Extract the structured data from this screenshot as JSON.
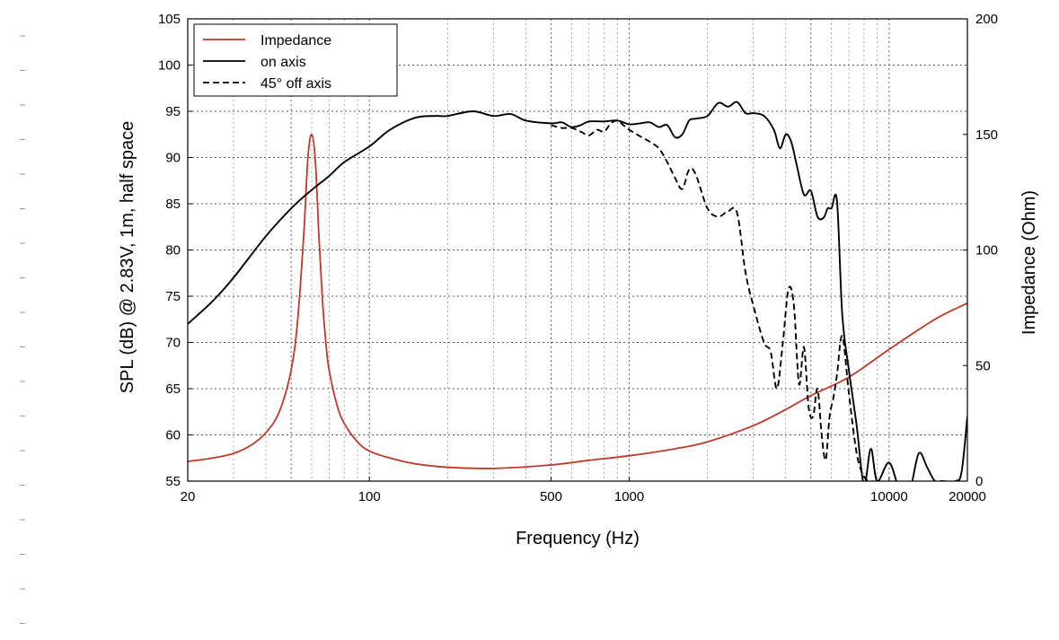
{
  "chart_data": {
    "type": "line",
    "xscale": "log",
    "xlabel": "Frequency (Hz)",
    "ylabel_left": "SPL (dB) @ 2.83V, 1m, half space",
    "ylabel_right": "Impedance (Ohm)",
    "xlim": [
      20,
      20000
    ],
    "ylim_left": [
      55,
      105
    ],
    "ylim_right": [
      0,
      200
    ],
    "x_ticks": [
      20,
      100,
      500,
      1000,
      10000,
      20000
    ],
    "x_tick_labels": [
      "20",
      "100",
      "500",
      "1000",
      "10000",
      "20000"
    ],
    "y_left_ticks": [
      55,
      60,
      65,
      70,
      75,
      80,
      85,
      90,
      95,
      100,
      105
    ],
    "y_left_tick_labels": [
      "55",
      "60",
      "65",
      "70",
      "75",
      "80",
      "85",
      "90",
      "95",
      "100",
      "105"
    ],
    "y_right_ticks": [
      0,
      50,
      100,
      150,
      200
    ],
    "y_right_tick_labels": [
      "0",
      "50",
      "100",
      "150",
      "200"
    ],
    "grid": true,
    "legend_position": "top-left",
    "legend": [
      {
        "label": "Impedance",
        "color": "#c0392b",
        "style": "solid"
      },
      {
        "label": "on axis",
        "color": "#000000",
        "style": "solid"
      },
      {
        "label": "45° off axis",
        "color": "#000000",
        "style": "dashed"
      }
    ],
    "series": [
      {
        "name": "Impedance",
        "axis": "right",
        "color": "#c0392b",
        "style": "solid",
        "x": [
          20,
          25,
          30,
          35,
          40,
          45,
          50,
          53,
          56,
          58,
          60,
          62,
          64,
          66,
          68,
          70,
          75,
          80,
          90,
          100,
          120,
          150,
          200,
          300,
          500,
          700,
          1000,
          1500,
          2000,
          3000,
          4000,
          5000,
          7000,
          10000,
          15000,
          20000
        ],
        "y": [
          8.5,
          10,
          12,
          15.5,
          21,
          30,
          48,
          70,
          108,
          140,
          150,
          138,
          105,
          78,
          60,
          48,
          33,
          25,
          17,
          13,
          10,
          7.5,
          6,
          5.5,
          7,
          9,
          11,
          14,
          17,
          24,
          31,
          37,
          45,
          57,
          70,
          77
        ]
      },
      {
        "name": "on axis",
        "axis": "left",
        "color": "#000000",
        "style": "solid",
        "x": [
          20,
          25,
          30,
          40,
          50,
          60,
          70,
          80,
          100,
          120,
          150,
          180,
          200,
          250,
          300,
          350,
          400,
          500,
          550,
          600,
          650,
          700,
          800,
          900,
          1000,
          1100,
          1200,
          1300,
          1400,
          1500,
          1600,
          1700,
          1800,
          2000,
          2200,
          2400,
          2600,
          2800,
          3000,
          3300,
          3600,
          3800,
          4000,
          4200,
          4400,
          4700,
          5000,
          5300,
          5600,
          5800,
          6000,
          6300,
          6600,
          7000,
          7500,
          8000,
          8500,
          9000,
          10000,
          11000,
          12000,
          13000,
          14000,
          15000,
          16000,
          18000,
          19000,
          20000
        ],
        "y": [
          72,
          74.5,
          77,
          81.5,
          84.5,
          86.5,
          88,
          89.5,
          91.2,
          93,
          94.3,
          94.5,
          94.5,
          95,
          94.5,
          94.7,
          94,
          93.7,
          93.8,
          93.3,
          93.5,
          93.9,
          93.9,
          94,
          93.6,
          93.7,
          93.8,
          93.3,
          93.5,
          92.2,
          92.5,
          94,
          94.2,
          94.5,
          95.9,
          95.5,
          96,
          94.8,
          94.8,
          94.5,
          93,
          91,
          92.5,
          91.7,
          89.3,
          86,
          86.4,
          83.6,
          83.5,
          84.5,
          84.5,
          85.3,
          73,
          67,
          61,
          54.6,
          58.5,
          55,
          57,
          54,
          54,
          58,
          56.5,
          55,
          55,
          55,
          56,
          62
        ]
      },
      {
        "name": "45° off axis",
        "axis": "left",
        "color": "#000000",
        "style": "dashed",
        "x": [
          500,
          550,
          600,
          650,
          700,
          750,
          800,
          850,
          900,
          950,
          1000,
          1100,
          1200,
          1300,
          1400,
          1500,
          1600,
          1700,
          1800,
          2000,
          2200,
          2400,
          2600,
          2800,
          3000,
          3300,
          3500,
          3700,
          3900,
          4100,
          4300,
          4500,
          4700,
          4900,
          5100,
          5300,
          5500,
          5700,
          5900,
          6100,
          6300,
          6600,
          7000,
          7500,
          8000,
          8500,
          9000
        ],
        "y": [
          93.5,
          93.2,
          93.2,
          92.8,
          92.4,
          93,
          92.8,
          93.7,
          94,
          93.5,
          93,
          92.3,
          91.7,
          91,
          89.5,
          87.8,
          86.6,
          88.7,
          88.2,
          84.5,
          83.6,
          84.2,
          84,
          77.6,
          74,
          70,
          69,
          65,
          70,
          75.8,
          74,
          65.5,
          69.5,
          63,
          62,
          65,
          60,
          57.3,
          62,
          64,
          66.5,
          70.7,
          64.5,
          58,
          55.5,
          55,
          55
        ]
      }
    ]
  }
}
